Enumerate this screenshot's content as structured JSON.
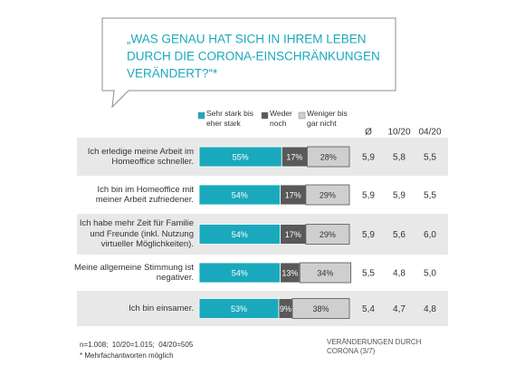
{
  "chart_data": {
    "type": "stacked_bar_h",
    "title": [
      "„WAS GENAU HAT SICH IN IHREM LEBEN",
      "DURCH DIE CORONA-EINSCHRÄNKUNGEN",
      "VERÄNDERT?“*"
    ],
    "categories": [
      "Ich erledige meine Arbeit im Homeoffice schneller.",
      "Ich bin im Homeoffice mit meiner Arbeit zufriedener.",
      "Ich habe mehr Zeit für Familie und Freunde (inkl. Nutzung virtueller Möglichkeiten).",
      "Meine allgemeine Stimmung ist negativer.",
      "Ich bin einsamer."
    ],
    "series": [
      {
        "name": "Sehr stark bis eher stark",
        "color": "#1aa9bc",
        "values": [
          55,
          54,
          54,
          54,
          53
        ],
        "value_labels": [
          "55%",
          "54%",
          "54%",
          "54%",
          "53%"
        ]
      },
      {
        "name": "Weder noch",
        "color": "#595959",
        "values": [
          17,
          17,
          17,
          13,
          9
        ],
        "value_labels": [
          "17%",
          "17%",
          "17%",
          "13%",
          "9%"
        ]
      },
      {
        "name": "Weniger bis gar nicht",
        "color": "#cfcfcf",
        "values": [
          28,
          29,
          29,
          34,
          38
        ],
        "value_labels": [
          "28%",
          "29%",
          "29%",
          "34%",
          "38%"
        ]
      }
    ],
    "xlim": [
      0,
      100
    ],
    "columns": [
      {
        "name": "Ø",
        "values": [
          5.9,
          5.9,
          5.9,
          5.5,
          5.4
        ],
        "value_labels": [
          "5,9",
          "5,9",
          "5,9",
          "5,5",
          "5,4"
        ]
      },
      {
        "name": "10/20",
        "values": [
          5.8,
          5.9,
          5.6,
          4.8,
          4.7
        ],
        "value_labels": [
          "5,8",
          "5,9",
          "5,6",
          "4,8",
          "4,7"
        ]
      },
      {
        "name": "04/20",
        "values": [
          5.5,
          5.5,
          6.0,
          5.0,
          4.8
        ],
        "value_labels": [
          "5,5",
          "5,5",
          "6,0",
          "5,0",
          "4,8"
        ]
      }
    ],
    "notes": [
      "n=1.008;  10/20=1.015;  04/20=505",
      "* Mehrfachantworten möglich"
    ],
    "footer": "VERÄNDERUNGEN DURCH CORONA (3/7)"
  }
}
